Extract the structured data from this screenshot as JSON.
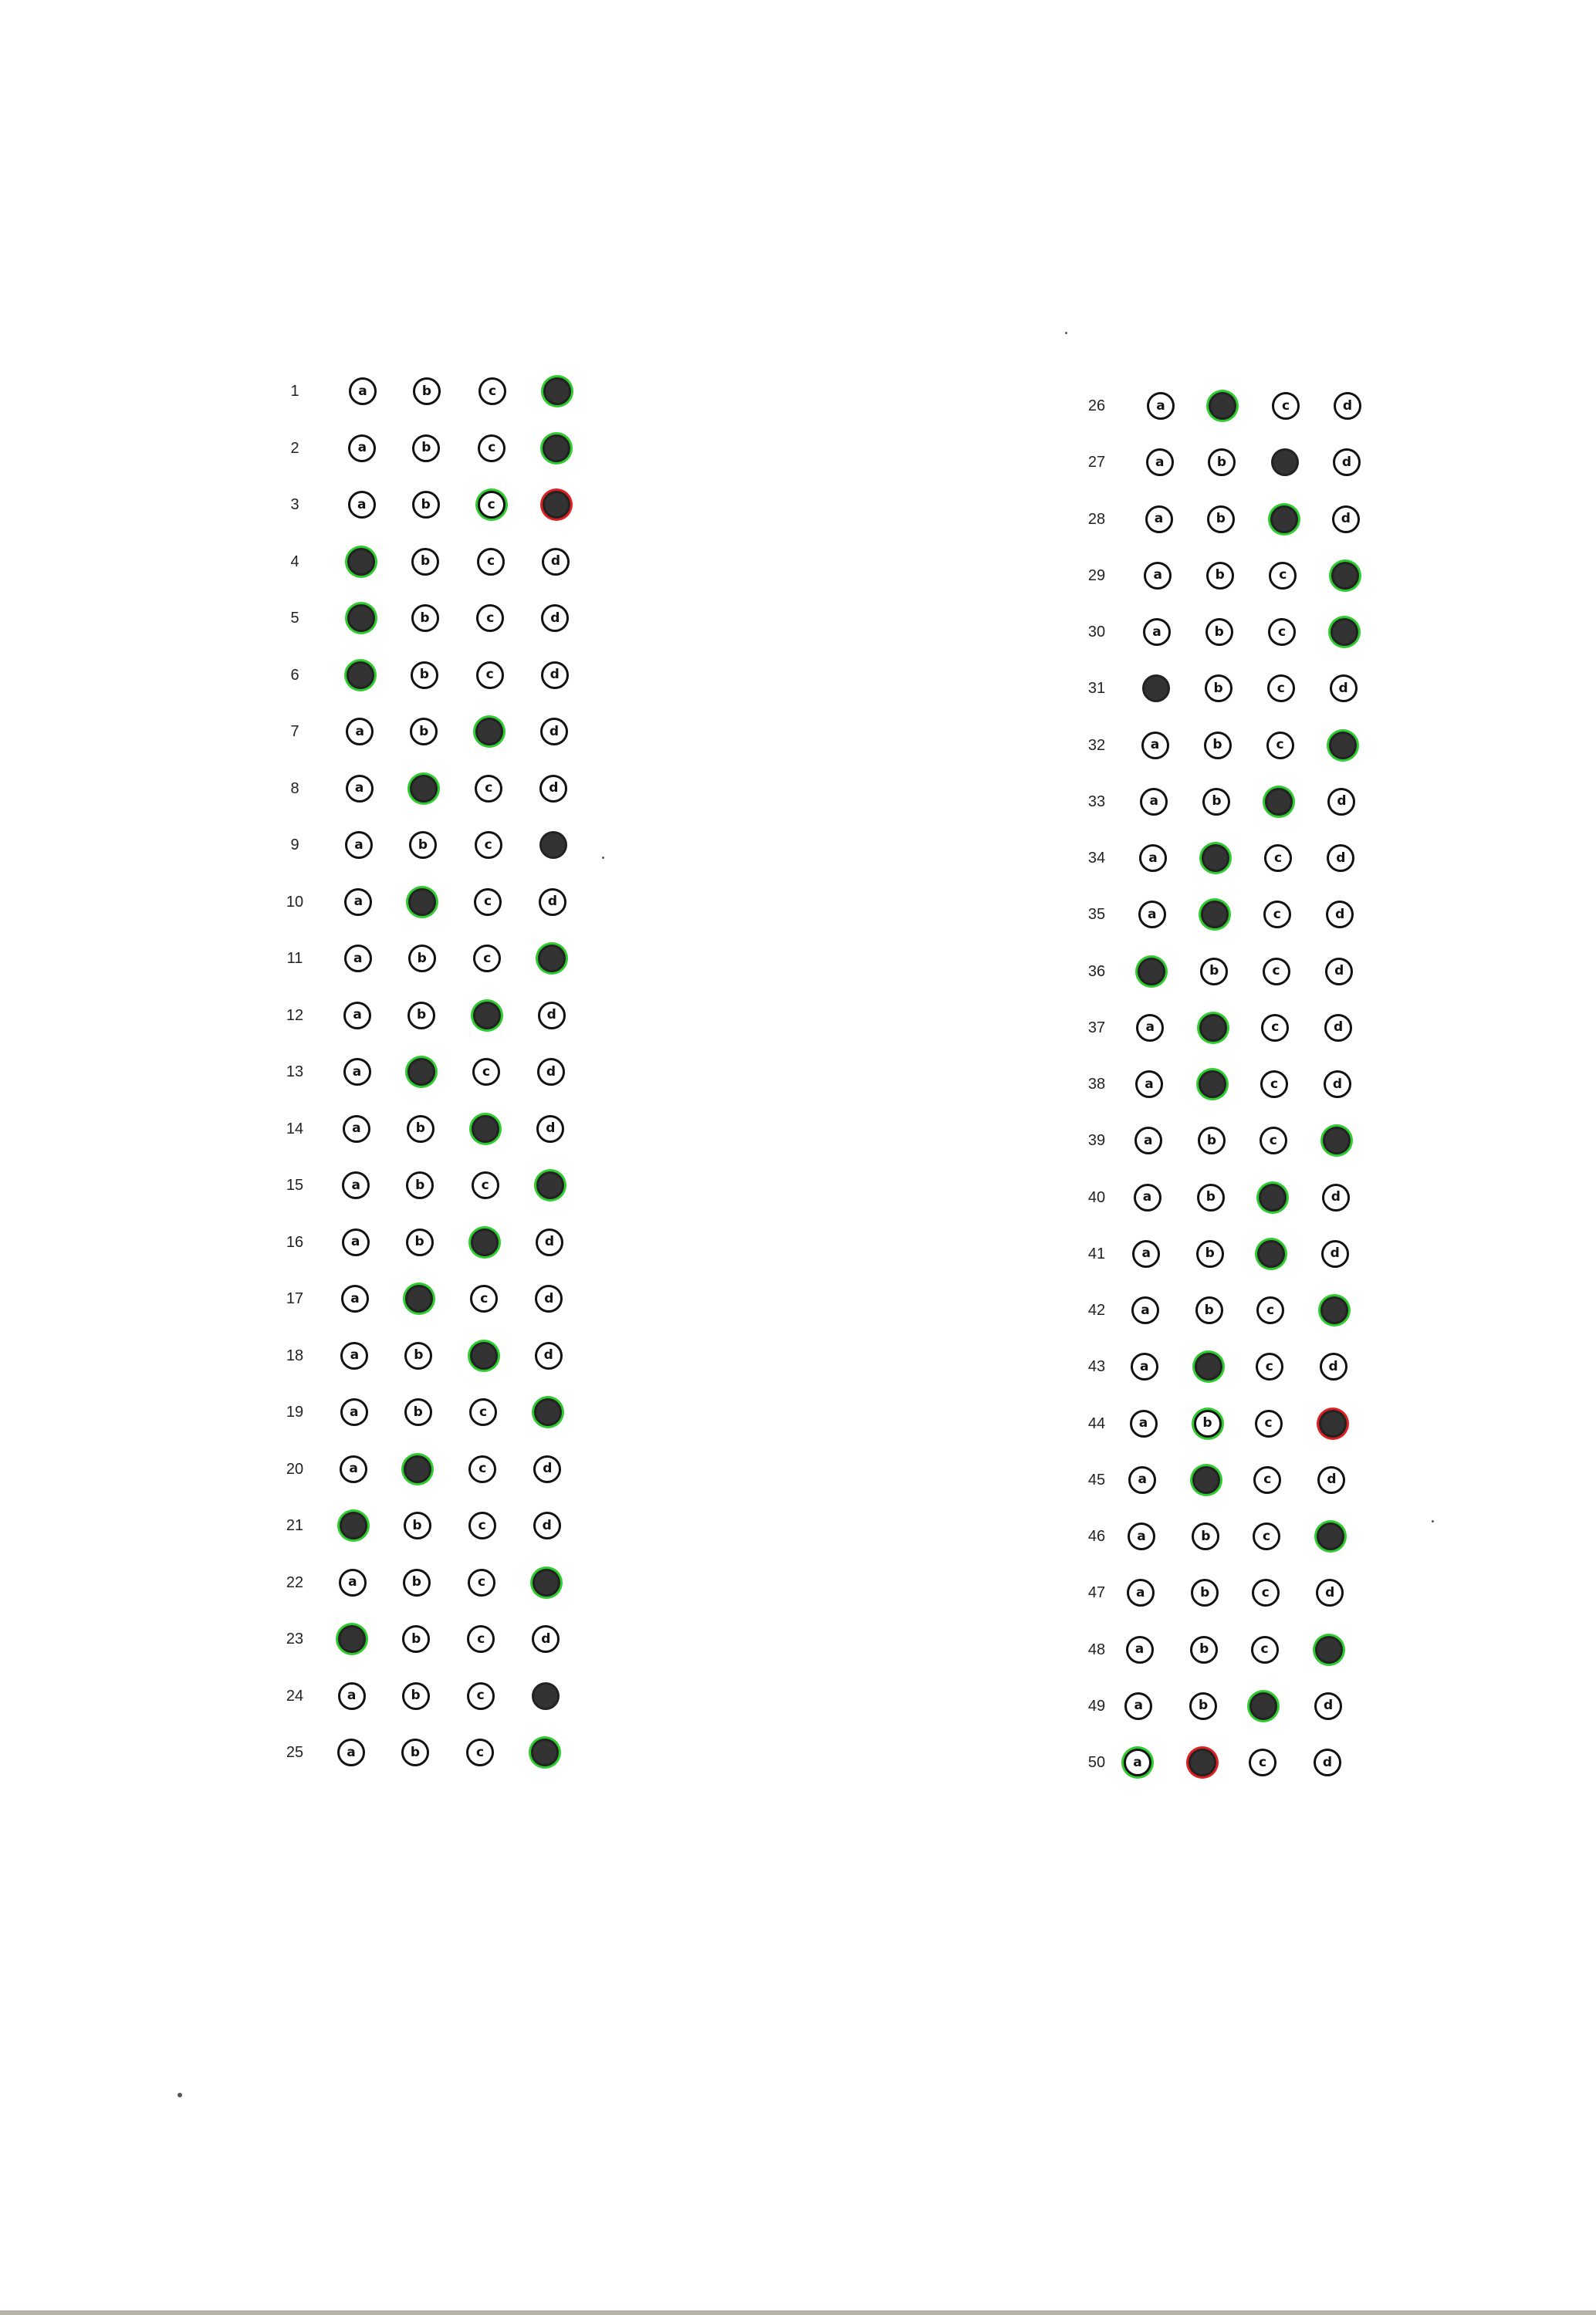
{
  "sheet": {
    "title": "",
    "options": [
      "a",
      "b",
      "c",
      "d"
    ],
    "colors": {
      "correct_ring": "#2ecc2e",
      "wrong_ring": "#e02020",
      "fill": "#333333"
    },
    "questions": [
      {
        "number": "1",
        "filled": [
          "d"
        ],
        "correct": "d"
      },
      {
        "number": "2",
        "filled": [
          "d"
        ],
        "correct": "d"
      },
      {
        "number": "3",
        "filled": [
          "d"
        ],
        "correct": "c"
      },
      {
        "number": "4",
        "filled": [
          "a"
        ],
        "correct": "a"
      },
      {
        "number": "5",
        "filled": [
          "a"
        ],
        "correct": "a"
      },
      {
        "number": "6",
        "filled": [
          "a"
        ],
        "correct": "a"
      },
      {
        "number": "7",
        "filled": [
          "c"
        ],
        "correct": "c"
      },
      {
        "number": "8",
        "filled": [
          "b"
        ],
        "correct": "b"
      },
      {
        "number": "9",
        "filled": [
          "d"
        ],
        "correct": null
      },
      {
        "number": "10",
        "filled": [
          "b"
        ],
        "correct": "b"
      },
      {
        "number": "11",
        "filled": [
          "d"
        ],
        "correct": "d"
      },
      {
        "number": "12",
        "filled": [
          "c"
        ],
        "correct": "c"
      },
      {
        "number": "13",
        "filled": [
          "b"
        ],
        "correct": "b"
      },
      {
        "number": "14",
        "filled": [
          "c"
        ],
        "correct": "c"
      },
      {
        "number": "15",
        "filled": [
          "d"
        ],
        "correct": "d"
      },
      {
        "number": "16",
        "filled": [
          "c"
        ],
        "correct": "c"
      },
      {
        "number": "17",
        "filled": [
          "b"
        ],
        "correct": "b"
      },
      {
        "number": "18",
        "filled": [
          "c"
        ],
        "correct": "c"
      },
      {
        "number": "19",
        "filled": [
          "d"
        ],
        "correct": "d"
      },
      {
        "number": "20",
        "filled": [
          "b"
        ],
        "correct": "b"
      },
      {
        "number": "21",
        "filled": [
          "a"
        ],
        "correct": "a"
      },
      {
        "number": "22",
        "filled": [
          "d"
        ],
        "correct": "d"
      },
      {
        "number": "23",
        "filled": [
          "a"
        ],
        "correct": "a"
      },
      {
        "number": "24",
        "filled": [
          "d"
        ],
        "correct": null
      },
      {
        "number": "25",
        "filled": [
          "d"
        ],
        "correct": "d"
      },
      {
        "number": "26",
        "filled": [
          "b"
        ],
        "correct": "b"
      },
      {
        "number": "27",
        "filled": [
          "c"
        ],
        "correct": null
      },
      {
        "number": "28",
        "filled": [
          "c"
        ],
        "correct": "c"
      },
      {
        "number": "29",
        "filled": [
          "d"
        ],
        "correct": "d"
      },
      {
        "number": "30",
        "filled": [
          "d"
        ],
        "correct": "d"
      },
      {
        "number": "31",
        "filled": [
          "a"
        ],
        "correct": null
      },
      {
        "number": "32",
        "filled": [
          "d"
        ],
        "correct": "d"
      },
      {
        "number": "33",
        "filled": [
          "c"
        ],
        "correct": "c"
      },
      {
        "number": "34",
        "filled": [
          "b"
        ],
        "correct": "b"
      },
      {
        "number": "35",
        "filled": [
          "b"
        ],
        "correct": "b"
      },
      {
        "number": "36",
        "filled": [
          "a"
        ],
        "correct": "a"
      },
      {
        "number": "37",
        "filled": [
          "b"
        ],
        "correct": "b"
      },
      {
        "number": "38",
        "filled": [
          "b"
        ],
        "correct": "b"
      },
      {
        "number": "39",
        "filled": [
          "d"
        ],
        "correct": "d"
      },
      {
        "number": "40",
        "filled": [
          "c"
        ],
        "correct": "c"
      },
      {
        "number": "41",
        "filled": [
          "c"
        ],
        "correct": "c"
      },
      {
        "number": "42",
        "filled": [
          "d"
        ],
        "correct": "d"
      },
      {
        "number": "43",
        "filled": [
          "b"
        ],
        "correct": "b"
      },
      {
        "number": "44",
        "filled": [
          "d"
        ],
        "correct": "b"
      },
      {
        "number": "45",
        "filled": [
          "b"
        ],
        "correct": "b"
      },
      {
        "number": "46",
        "filled": [
          "d"
        ],
        "correct": "d"
      },
      {
        "number": "47",
        "filled": [],
        "correct": null
      },
      {
        "number": "48",
        "filled": [
          "d"
        ],
        "correct": "d"
      },
      {
        "number": "49",
        "filled": [
          "c"
        ],
        "correct": "c"
      },
      {
        "number": "50",
        "filled": [
          "b"
        ],
        "correct": "a"
      }
    ]
  }
}
